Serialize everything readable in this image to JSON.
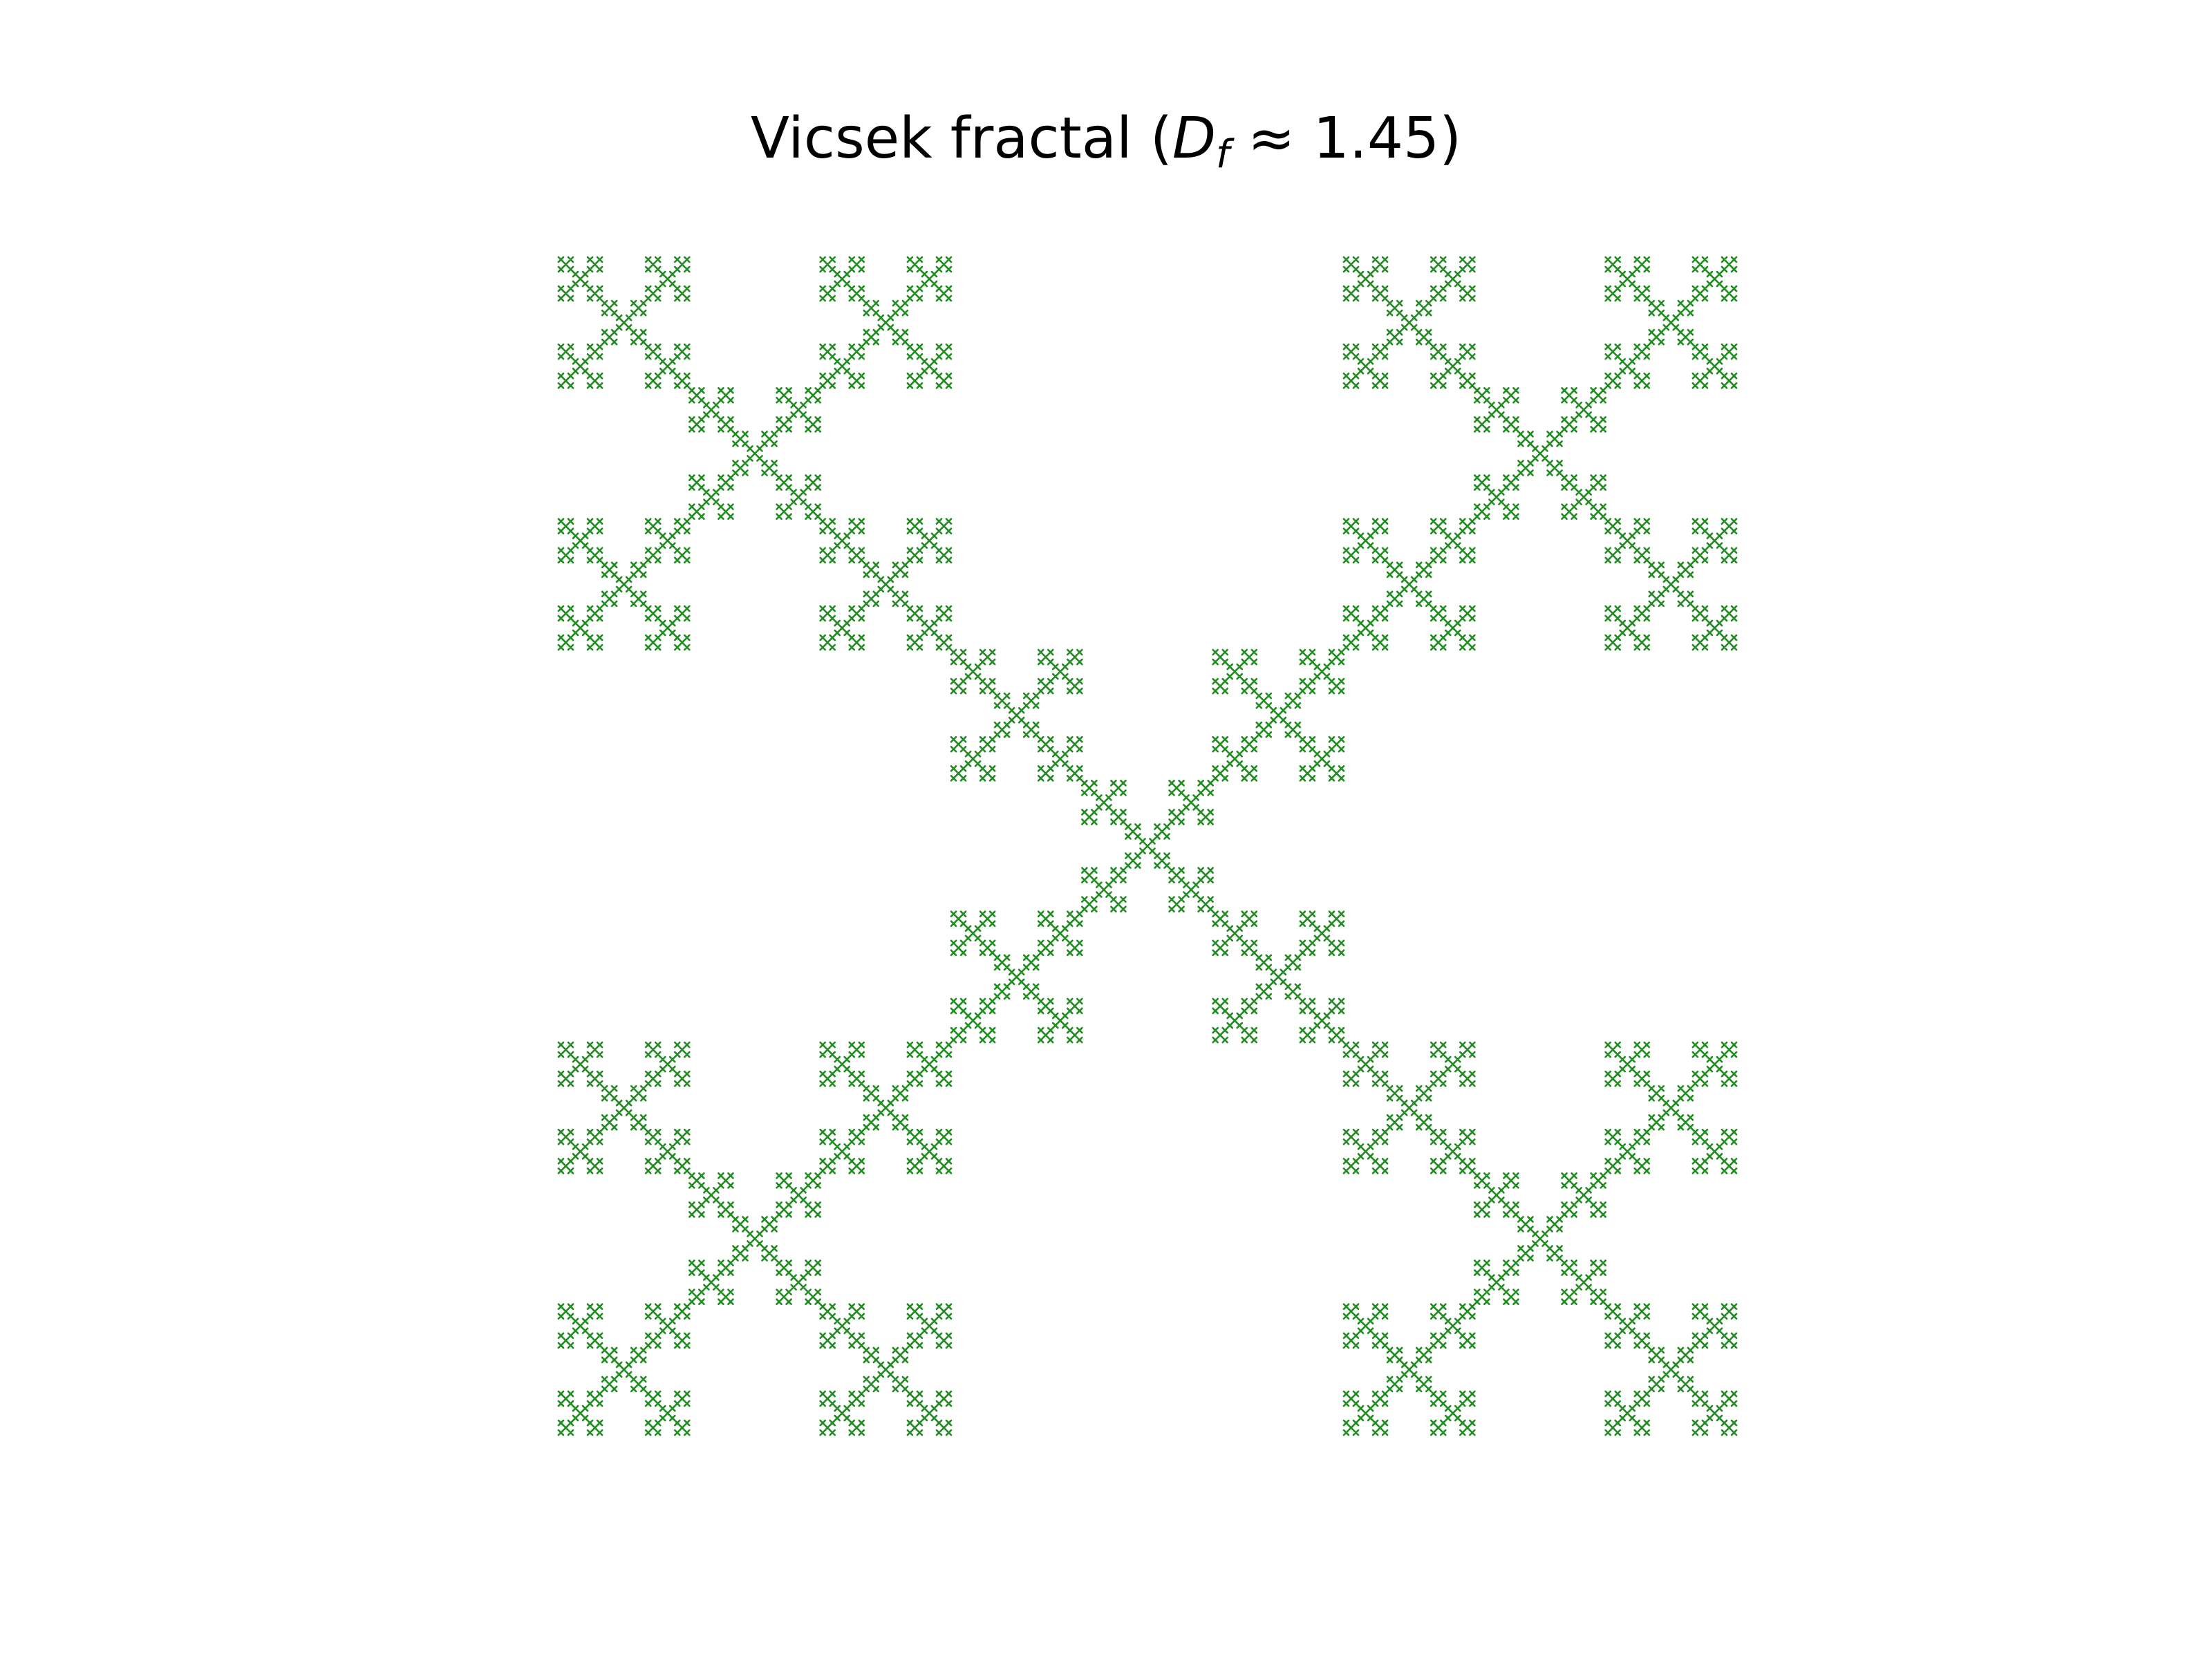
{
  "title": {
    "prefix": "Vicsek fractal (",
    "symbol": "D",
    "subscript": "f",
    "relation": " ≈ ",
    "value": "1.45",
    "suffix": ")"
  },
  "fractal": {
    "name": "Vicsek fractal",
    "variant": "diagonal (X-shaped)",
    "fractal_dimension": "1.45",
    "iterations": 5,
    "color": "#228b22"
  }
}
